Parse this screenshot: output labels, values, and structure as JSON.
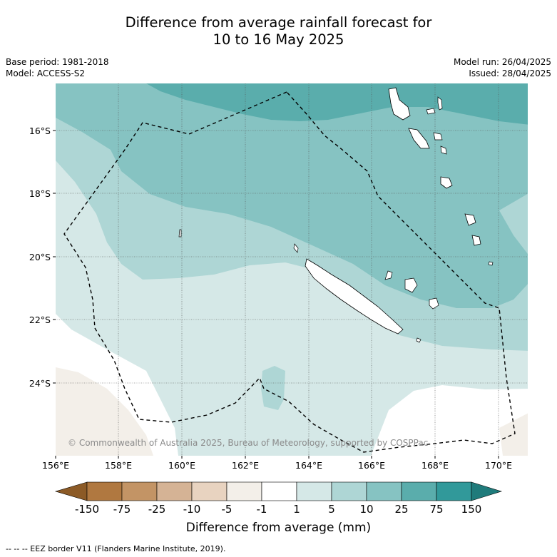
{
  "title_line1": "Difference from average rainfall forecast for",
  "title_line2": "10 to 16 May 2025",
  "base_period": "Base period: 1981-2018",
  "model": "Model: ACCESS-S2",
  "model_run": "Model run: 26/04/2025",
  "issued": "Issued: 28/04/2025",
  "lat_labels": [
    "16°S",
    "18°S",
    "20°S",
    "22°S",
    "24°S"
  ],
  "lon_labels": [
    "156°E",
    "158°E",
    "160°E",
    "162°E",
    "164°E",
    "166°E",
    "168°E",
    "170°E"
  ],
  "copyright": "© Commonwealth of Australia 2025, Bureau of Meteorology, supported by COSPPac",
  "colorbar": {
    "ticks": [
      "-150",
      "-75",
      "-25",
      "-10",
      "-5",
      "-1",
      "1",
      "5",
      "10",
      "25",
      "75",
      "150"
    ],
    "colors": [
      "#8c5a26",
      "#b07840",
      "#c39465",
      "#d5b395",
      "#e8d3c0",
      "#f3efe9",
      "#ffffff",
      "#d5e8e7",
      "#aed6d5",
      "#86c3c2",
      "#5aadac",
      "#31999a",
      "#1f7b7b"
    ],
    "title": "Difference from average (mm)"
  },
  "legend_note": "--  --  -- EEZ border V11 (Flanders Marine Institute, 2019)."
}
